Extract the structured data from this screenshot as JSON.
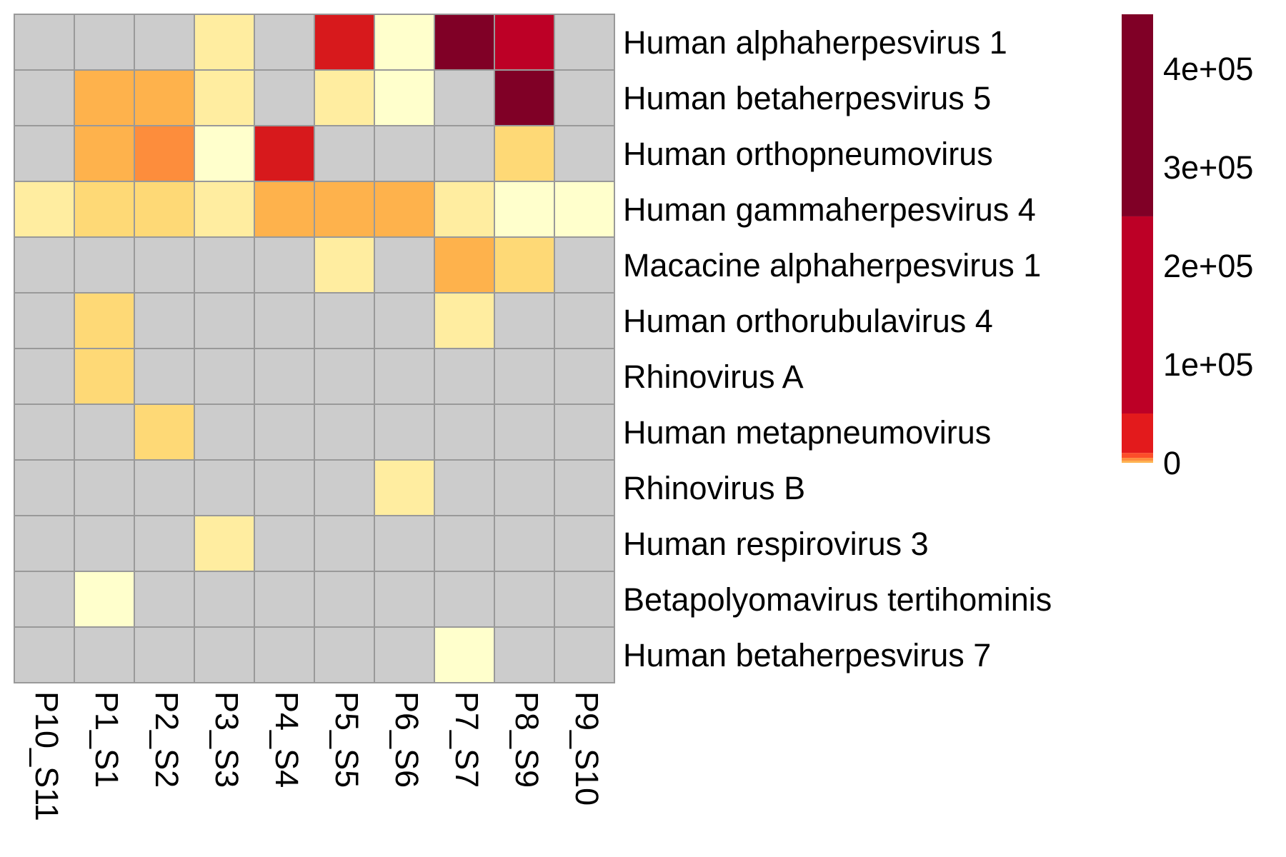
{
  "chart_data": {
    "type": "heatmap",
    "title": "",
    "xlabel": "",
    "ylabel": "",
    "columns": [
      "P10_S11",
      "P1_S1",
      "P2_S2",
      "P3_S3",
      "P4_S4",
      "P5_S5",
      "P6_S6",
      "P7_S7",
      "P8_S9",
      "P9_S10"
    ],
    "rows": [
      "Human alphaherpesvirus 1",
      "Human betaherpesvirus 5",
      "Human orthopneumovirus",
      "Human gammaherpesvirus 4",
      "Macacine alphaherpesvirus 1",
      "Human orthorubulavirus 4",
      "Rhinovirus A",
      "Human metapneumovirus",
      "Rhinovirus B",
      "Human respirovirus 3",
      "Betapolyomavirus tertihominis",
      "Human betaherpesvirus 7"
    ],
    "values": [
      [
        null,
        null,
        null,
        900,
        null,
        40000,
        200,
        450000,
        150000,
        null
      ],
      [
        null,
        2800,
        2800,
        900,
        null,
        900,
        200,
        null,
        450000,
        null
      ],
      [
        null,
        2800,
        6000,
        100,
        40000,
        null,
        null,
        null,
        1500,
        null
      ],
      [
        700,
        1500,
        1500,
        1000,
        2800,
        2800,
        2800,
        800,
        200,
        200
      ],
      [
        null,
        null,
        null,
        null,
        null,
        600,
        null,
        2800,
        1500,
        null
      ],
      [
        null,
        1500,
        null,
        null,
        null,
        null,
        null,
        700,
        null,
        null
      ],
      [
        null,
        1500,
        null,
        null,
        null,
        null,
        null,
        null,
        null,
        null
      ],
      [
        null,
        null,
        1500,
        null,
        null,
        null,
        null,
        null,
        null,
        null
      ],
      [
        null,
        null,
        null,
        null,
        null,
        null,
        800,
        null,
        null,
        null
      ],
      [
        null,
        null,
        null,
        900,
        null,
        null,
        null,
        null,
        null,
        null
      ],
      [
        null,
        100,
        null,
        null,
        null,
        null,
        null,
        null,
        null,
        null
      ],
      [
        null,
        null,
        null,
        null,
        null,
        null,
        null,
        200,
        null,
        null
      ]
    ],
    "missing_color": "#cccccc",
    "cell_border_color": "#999999",
    "legend": {
      "position": "right",
      "ticks": [
        0,
        100000,
        200000,
        300000,
        400000
      ],
      "tick_labels": [
        "0",
        "1e+05",
        "2e+05",
        "3e+05",
        "4e+05"
      ],
      "range": [
        0,
        455000
      ],
      "bins": [
        {
          "min": 0,
          "max": 2000,
          "color": "#feb24c"
        },
        {
          "min": 2000,
          "max": 5000,
          "color": "#fd8d3c"
        },
        {
          "min": 5000,
          "max": 10000,
          "color": "#fc4e2a"
        },
        {
          "min": 10000,
          "max": 50000,
          "color": "#e31a1c"
        },
        {
          "min": 50000,
          "max": 250000,
          "color": "#bd0026"
        },
        {
          "min": 250000,
          "max": 455000,
          "color": "#800026"
        }
      ],
      "cell_bins": [
        {
          "max": 300,
          "color": "#ffffcc"
        },
        {
          "max": 1000,
          "color": "#ffeda0"
        },
        {
          "max": 2000,
          "color": "#fed976"
        },
        {
          "max": 5000,
          "color": "#feb24c"
        },
        {
          "max": 10000,
          "color": "#fd8d3c"
        },
        {
          "max": 50000,
          "color": "#d7191c"
        },
        {
          "max": 250000,
          "color": "#bd0026"
        },
        {
          "max": 1000000,
          "color": "#800026"
        }
      ]
    }
  }
}
